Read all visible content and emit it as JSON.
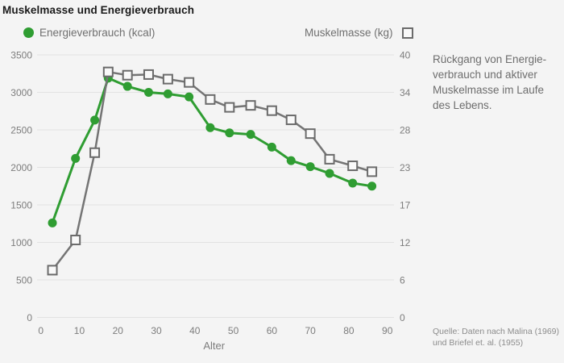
{
  "title": "Muskelmasse und Energieverbrauch",
  "annotation": "Rückgang von Energie-\nverbrauch und aktiver\nMuskelmasse im Laufe\ndes Lebens.",
  "source": "Quelle: Daten nach Malina (1969)\nund Briefel et. al. (1955)",
  "colors": {
    "background": "#f4f4f4",
    "accent_green": "#2f9d32",
    "line_gray": "#747474",
    "marker_fill": "#f9f9f9",
    "gridline": "#e2e2e2",
    "text_gray": "#7d7d7d",
    "title_text": "#1a1a1a"
  },
  "chart_data": {
    "type": "line",
    "title": "Muskelmasse und Energieverbrauch",
    "xlabel": "Alter",
    "x": [
      3,
      9,
      14,
      17.5,
      22.5,
      28,
      33,
      38.5,
      44,
      49,
      54.5,
      60,
      65,
      70,
      75,
      81,
      86
    ],
    "x_ticks": [
      0,
      10,
      20,
      30,
      40,
      50,
      60,
      70,
      80,
      90
    ],
    "series": [
      {
        "name": "Energieverbrauch (kcal)",
        "axis": "left",
        "marker": "circle",
        "color": "#2f9d32",
        "values": [
          1260,
          2120,
          2630,
          3190,
          3080,
          3000,
          2980,
          2940,
          2530,
          2460,
          2440,
          2270,
          2090,
          2010,
          1920,
          1790,
          1750
        ]
      },
      {
        "name": "Muskelmasse (kg)",
        "axis": "right",
        "marker": "square",
        "color": "#747474",
        "values": [
          7.2,
          11.8,
          25.1,
          37.4,
          36.9,
          37.0,
          36.3,
          35.8,
          33.2,
          32.0,
          32.3,
          31.5,
          30.1,
          28.0,
          24.1,
          23.1,
          22.2
        ]
      }
    ],
    "left_axis": {
      "min": 0,
      "max": 3500,
      "ticks": [
        "3500",
        "3000",
        "2500",
        "2000",
        "1500",
        "1000",
        "500",
        "0"
      ]
    },
    "right_axis": {
      "min": 0,
      "max": 40,
      "ticks": [
        "40",
        "34",
        "28",
        "23",
        "17",
        "12",
        "6",
        "0"
      ]
    },
    "grid": "horizontal",
    "legend_position": "top"
  }
}
